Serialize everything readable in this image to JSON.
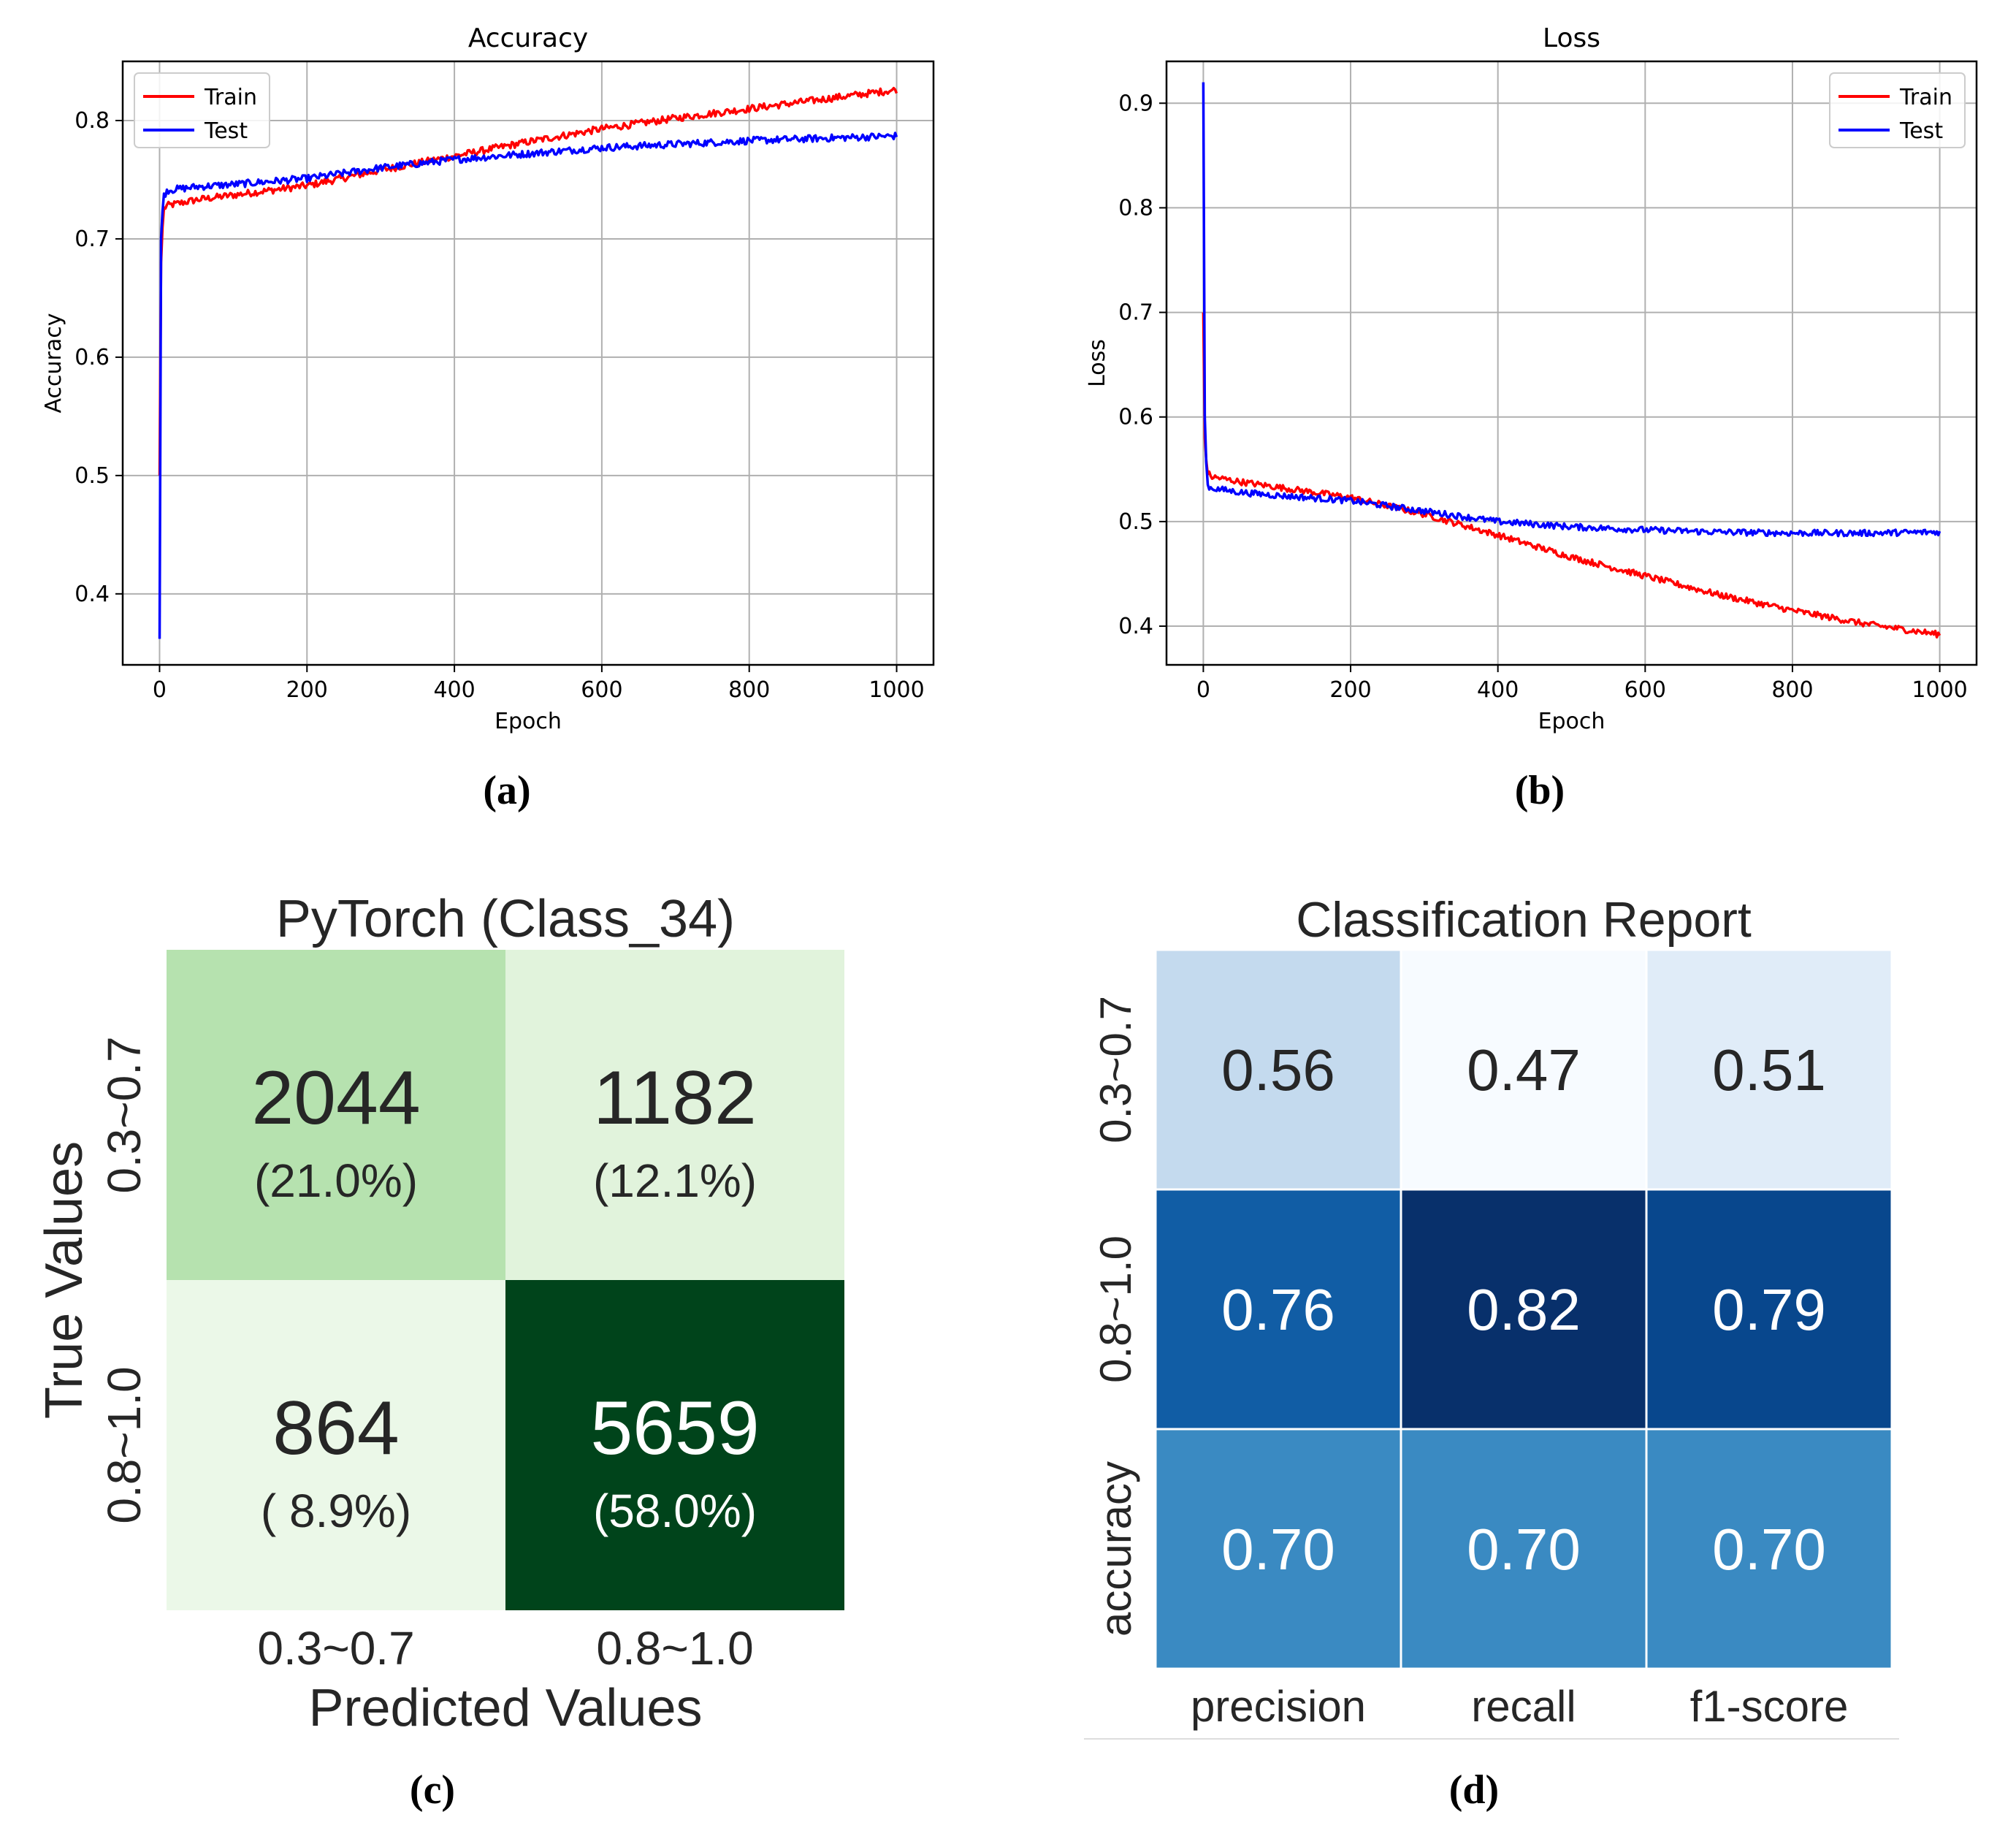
{
  "chart_data": [
    {
      "panel": "(a)",
      "type": "line",
      "title": "Accuracy",
      "xlabel": "Epoch",
      "ylabel": "Accuracy",
      "xlim": [
        -50,
        1050
      ],
      "ylim": [
        0.34,
        0.85
      ],
      "xticks": [
        0,
        200,
        400,
        600,
        800,
        1000
      ],
      "yticks": [
        0.4,
        0.5,
        0.6,
        0.7,
        0.8
      ],
      "grid": true,
      "legend": "top-left",
      "series": [
        {
          "name": "Train",
          "color": "#ff0000",
          "x": [
            0,
            2,
            5,
            10,
            50,
            100,
            200,
            300,
            400,
            500,
            600,
            700,
            800,
            900,
            1000
          ],
          "y": [
            0.5,
            0.68,
            0.725,
            0.728,
            0.733,
            0.737,
            0.745,
            0.758,
            0.77,
            0.782,
            0.793,
            0.802,
            0.81,
            0.818,
            0.826
          ]
        },
        {
          "name": "Test",
          "color": "#0000ff",
          "x": [
            0,
            2,
            5,
            10,
            50,
            100,
            200,
            300,
            400,
            500,
            600,
            700,
            800,
            900,
            1000
          ],
          "y": [
            0.362,
            0.7,
            0.735,
            0.741,
            0.744,
            0.746,
            0.751,
            0.76,
            0.767,
            0.772,
            0.777,
            0.78,
            0.783,
            0.785,
            0.787
          ]
        }
      ]
    },
    {
      "panel": "(b)",
      "type": "line",
      "title": "Loss",
      "xlabel": "Epoch",
      "ylabel": "Loss",
      "xlim": [
        -50,
        1050
      ],
      "ylim": [
        0.363,
        0.94
      ],
      "xticks": [
        0,
        200,
        400,
        600,
        800,
        1000
      ],
      "yticks": [
        0.4,
        0.5,
        0.6,
        0.7,
        0.8,
        0.9
      ],
      "grid": true,
      "legend": "top-right",
      "series": [
        {
          "name": "Train",
          "color": "#ff0000",
          "x": [
            0,
            2,
            5,
            10,
            50,
            100,
            200,
            300,
            400,
            500,
            600,
            700,
            800,
            900,
            1000
          ],
          "y": [
            0.7,
            0.58,
            0.548,
            0.543,
            0.538,
            0.533,
            0.523,
            0.507,
            0.487,
            0.466,
            0.448,
            0.43,
            0.415,
            0.402,
            0.392
          ]
        },
        {
          "name": "Test",
          "color": "#0000ff",
          "x": [
            0,
            2,
            5,
            10,
            50,
            100,
            200,
            300,
            400,
            500,
            600,
            700,
            800,
            900,
            1000
          ],
          "y": [
            0.92,
            0.6,
            0.535,
            0.532,
            0.528,
            0.525,
            0.52,
            0.51,
            0.5,
            0.495,
            0.492,
            0.49,
            0.489,
            0.489,
            0.49
          ]
        }
      ]
    },
    {
      "panel": "(c)",
      "type": "heatmap",
      "title": "PyTorch (Class_34)",
      "xlabel": "Predicted Values",
      "ylabel": "True Values",
      "xticklabels": [
        "0.3~0.7",
        "0.8~1.0"
      ],
      "yticklabels": [
        "0.3~0.7",
        "0.8~1.0"
      ],
      "values": [
        [
          2044,
          1182
        ],
        [
          864,
          5659
        ]
      ],
      "percent_labels": [
        [
          "(21.0%)",
          "(12.1%)"
        ],
        [
          "( 8.9%)",
          "(58.0%)"
        ]
      ],
      "colormap": "Greens"
    },
    {
      "panel": "(d)",
      "type": "heatmap",
      "title": "Classification Report",
      "xticklabels": [
        "precision",
        "recall",
        "f1-score"
      ],
      "yticklabels": [
        "0.3~0.7",
        "0.8~1.0",
        "accuracy"
      ],
      "values": [
        [
          0.56,
          0.47,
          0.51
        ],
        [
          0.76,
          0.82,
          0.79
        ],
        [
          0.7,
          0.7,
          0.7
        ]
      ],
      "value_labels": [
        [
          "0.56",
          "0.47",
          "0.51"
        ],
        [
          "0.76",
          "0.82",
          "0.79"
        ],
        [
          "0.70",
          "0.70",
          "0.70"
        ]
      ],
      "colormap": "Blues"
    }
  ],
  "captions": [
    "(a)",
    "(b)",
    "(c)",
    "(d)"
  ]
}
